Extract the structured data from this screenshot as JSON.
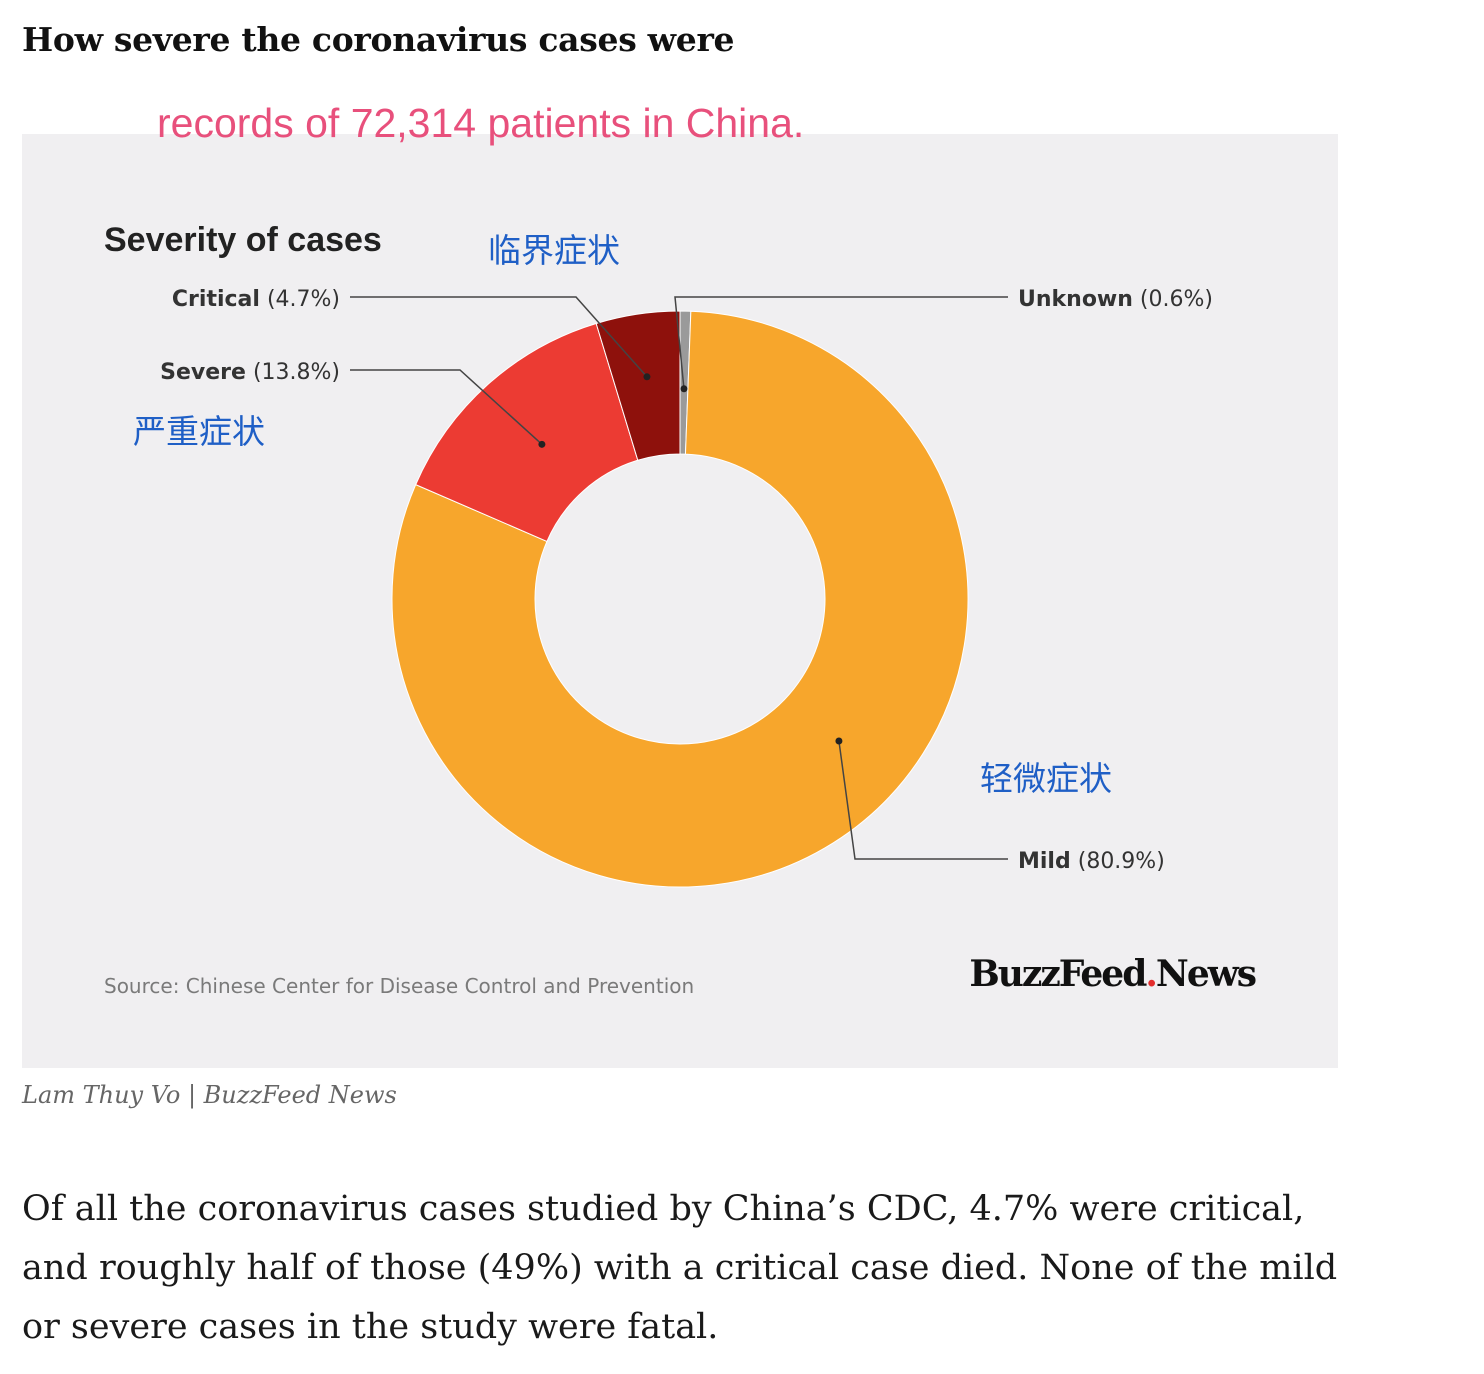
{
  "article": {
    "headline": "How severe the coronavirus cases were",
    "annotation_top": "records of 72,314 patients in China.",
    "credit": "Lam Thuy Vo | BuzzFeed News",
    "body": "Of all the coronavirus cases studied by China’s CDC, 4.7% were critical, and roughly half of those (49%) with a critical case died. None of the mild or severe cases in the study were fatal."
  },
  "chart_data": {
    "type": "pie",
    "variant": "donut",
    "title": "Severity of cases",
    "slices": [
      {
        "name": "Unknown",
        "value": 0.6,
        "value_label": "(0.6%)",
        "color": "#9a9a9a"
      },
      {
        "name": "Mild",
        "value": 80.9,
        "value_label": "(80.9%)",
        "color": "#f7a62c",
        "annotation": "轻微症状"
      },
      {
        "name": "Severe",
        "value": 13.8,
        "value_label": "(13.8%)",
        "color": "#ec3b33",
        "annotation": "严重症状"
      },
      {
        "name": "Critical",
        "value": 4.7,
        "value_label": "(4.7%)",
        "color": "#8e110c",
        "annotation": "临界症状"
      }
    ],
    "source": "Source: Chinese Center for Disease Control and Prevention",
    "brand": {
      "main": "BuzzFeed",
      "dot": ".",
      "tail": "News",
      "dot_color": "#e32d2d"
    },
    "annotation_color": "#1f5fc6",
    "background": "#f0eff1"
  }
}
